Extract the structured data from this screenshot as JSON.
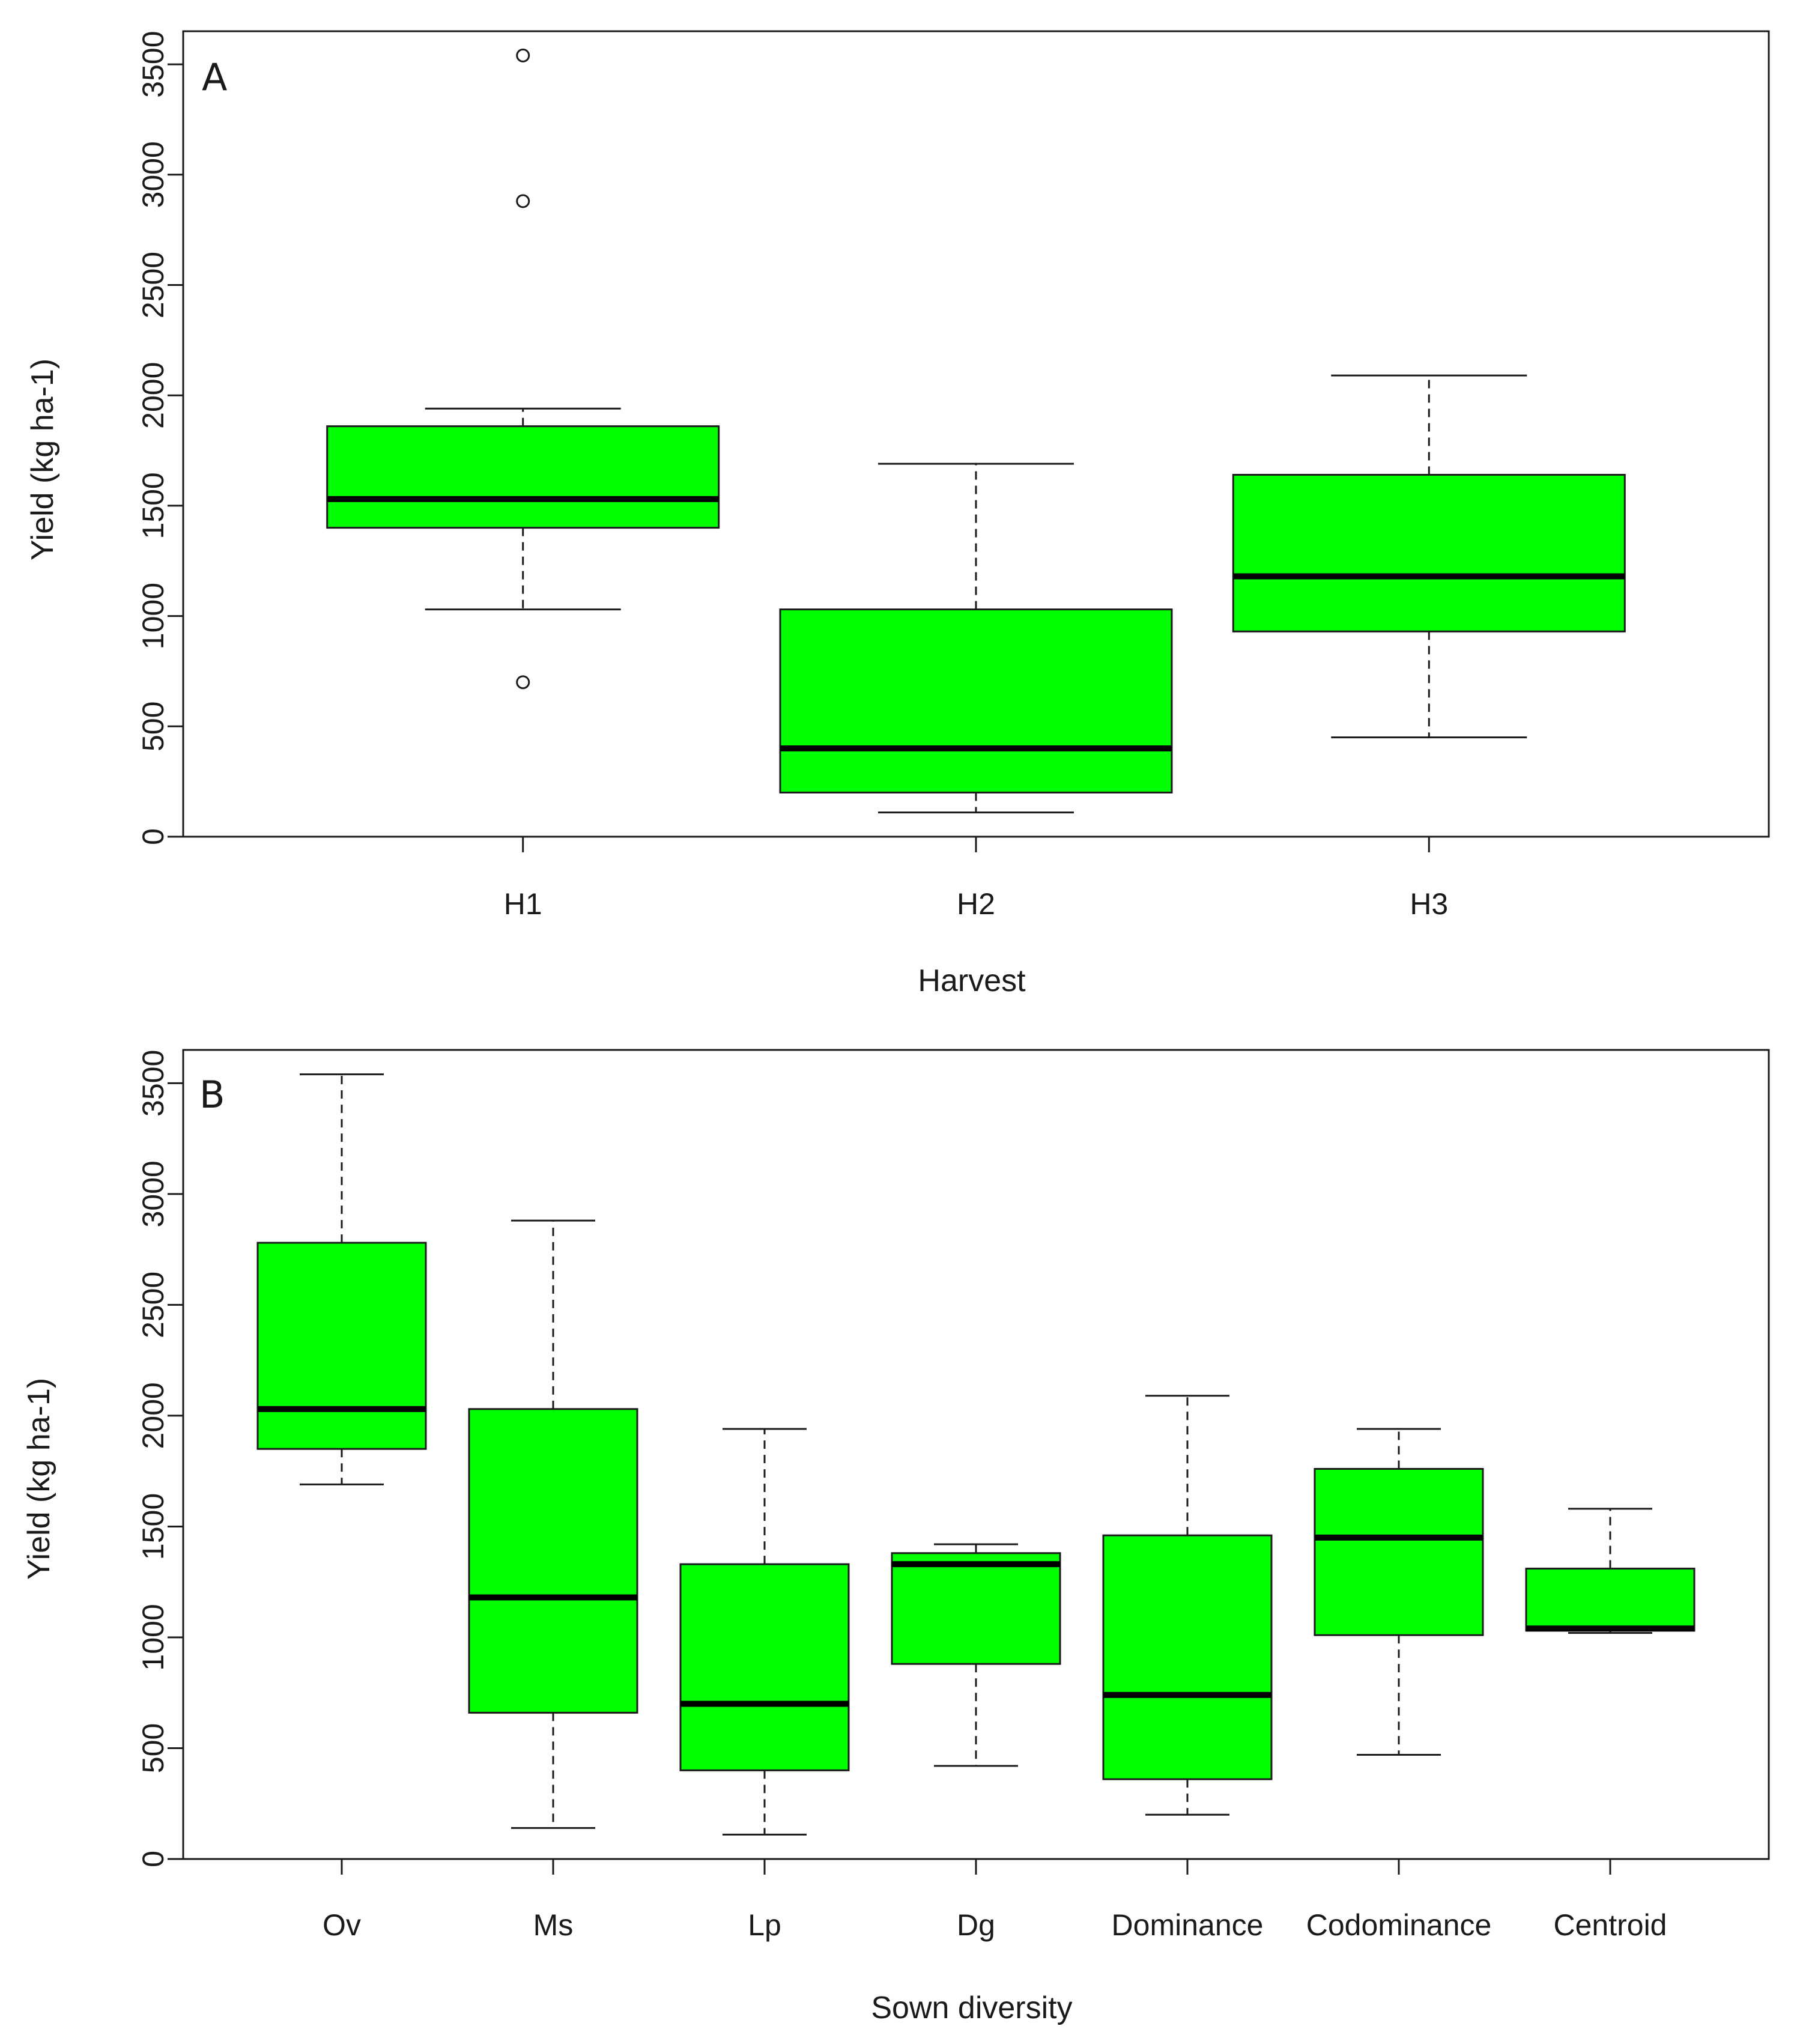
{
  "chart_data": [
    {
      "type": "boxplot",
      "panel_label": "A",
      "title": "",
      "xlabel": "Harvest",
      "ylabel": "Yield (kg ha-1)",
      "ylim": [
        0,
        3650
      ],
      "yticks": [
        0,
        500,
        1000,
        1500,
        2000,
        2500,
        3000,
        3500
      ],
      "categories": [
        "H1",
        "H2",
        "H3"
      ],
      "box_color": "#00ff00",
      "boxes": [
        {
          "category": "H1",
          "whisker_low": 1030,
          "q1": 1400,
          "median": 1530,
          "q3": 1860,
          "whisker_high": 1940,
          "outliers": [
            700,
            2880,
            3540
          ]
        },
        {
          "category": "H2",
          "whisker_low": 110,
          "q1": 200,
          "median": 400,
          "q3": 1030,
          "whisker_high": 1690,
          "outliers": []
        },
        {
          "category": "H3",
          "whisker_low": 450,
          "q1": 930,
          "median": 1180,
          "q3": 1640,
          "whisker_high": 2090,
          "outliers": []
        }
      ]
    },
    {
      "type": "boxplot",
      "panel_label": "B",
      "title": "",
      "xlabel": "Sown diversity",
      "ylabel": "Yield (kg ha-1)",
      "ylim": [
        0,
        3650
      ],
      "yticks": [
        0,
        500,
        1000,
        1500,
        2000,
        2500,
        3000,
        3500
      ],
      "categories": [
        "Ov",
        "Ms",
        "Lp",
        "Dg",
        "Dominance",
        "Codominance",
        "Centroid"
      ],
      "box_color": "#00ff00",
      "boxes": [
        {
          "category": "Ov",
          "whisker_low": 1690,
          "q1": 1850,
          "median": 2030,
          "q3": 2780,
          "whisker_high": 3540,
          "outliers": []
        },
        {
          "category": "Ms",
          "whisker_low": 140,
          "q1": 660,
          "median": 1180,
          "q3": 2030,
          "whisker_high": 2880,
          "outliers": []
        },
        {
          "category": "Lp",
          "whisker_low": 110,
          "q1": 400,
          "median": 700,
          "q3": 1330,
          "whisker_high": 1940,
          "outliers": []
        },
        {
          "category": "Dg",
          "whisker_low": 420,
          "q1": 880,
          "median": 1330,
          "q3": 1380,
          "whisker_high": 1420,
          "outliers": []
        },
        {
          "category": "Dominance",
          "whisker_low": 200,
          "q1": 360,
          "median": 740,
          "q3": 1460,
          "whisker_high": 2090,
          "outliers": []
        },
        {
          "category": "Codominance",
          "whisker_low": 470,
          "q1": 1010,
          "median": 1450,
          "q3": 1760,
          "whisker_high": 1940,
          "outliers": []
        },
        {
          "category": "Centroid",
          "whisker_low": 1020,
          "q1": 1030,
          "median": 1040,
          "q3": 1310,
          "whisker_high": 1580,
          "outliers": []
        }
      ]
    }
  ]
}
